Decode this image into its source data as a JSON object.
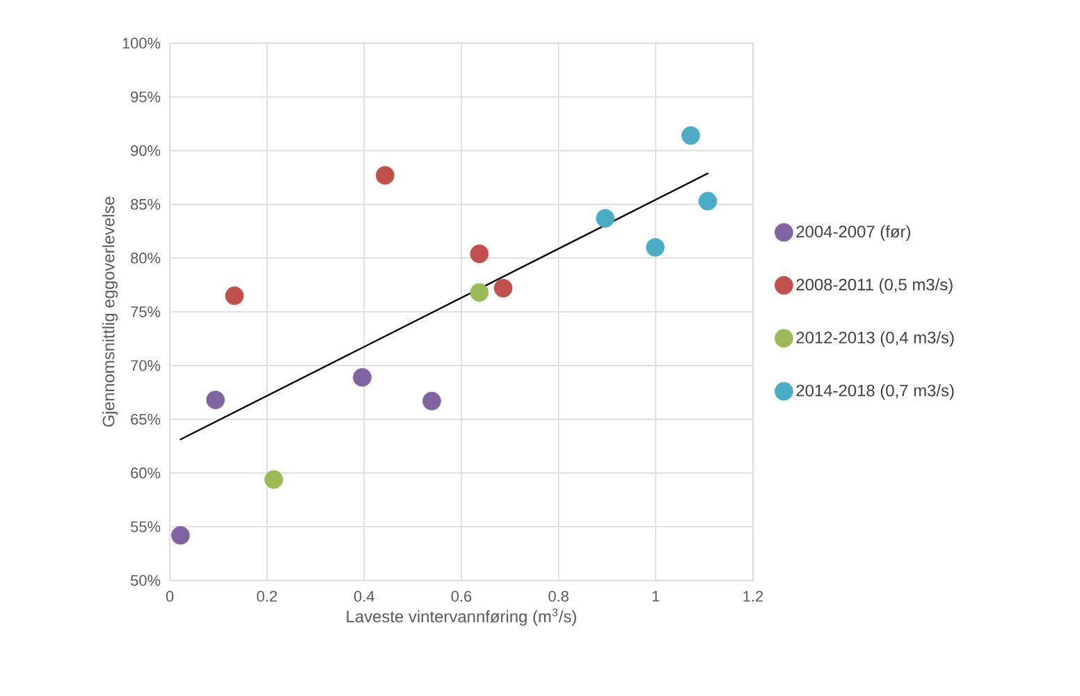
{
  "chart_data": {
    "type": "scatter",
    "xlabel": "Laveste vintervannføring (m$^{3}$/s)",
    "ylabel": "Gjennomsnittlig eggoverlevelse",
    "xlim": [
      0,
      1.2
    ],
    "xticks": [
      0,
      0.2,
      0.4,
      0.6,
      0.8,
      1,
      1.2
    ],
    "ylim": [
      50,
      100
    ],
    "yticks": [
      {
        "value": 50,
        "label": "50%"
      },
      {
        "value": 55,
        "label": "55%"
      },
      {
        "value": 60,
        "label": "60%"
      },
      {
        "value": 65,
        "label": "65%"
      },
      {
        "value": 70,
        "label": "70%"
      },
      {
        "value": 75,
        "label": "75%"
      },
      {
        "value": 80,
        "label": "80%"
      },
      {
        "value": 85,
        "label": "85%"
      },
      {
        "value": 90,
        "label": "90%"
      },
      {
        "value": 95,
        "label": "95%"
      },
      {
        "value": 100,
        "label": "100%"
      }
    ],
    "grid": true,
    "legend": "right",
    "series": [
      {
        "name": "2004-2007 (før)",
        "marker": "circle",
        "color": "#8064a2",
        "x": [
          0.022,
          0.094,
          0.396,
          0.539
        ],
        "values": [
          54.2,
          66.8,
          68.9,
          66.7
        ]
      },
      {
        "name": "2008-2011 (0,5 m3/s)",
        "marker": "circle",
        "color": "#c0504d",
        "x": [
          0.133,
          0.443,
          0.637,
          0.686
        ],
        "values": [
          76.5,
          87.7,
          80.4,
          77.2
        ]
      },
      {
        "name": "2012-2013 (0,4 m3/s)",
        "marker": "circle",
        "color": "#9bbb59",
        "x": [
          0.214,
          0.637
        ],
        "values": [
          59.4,
          76.8
        ]
      },
      {
        "name": "2014-2018 (0,7 m3/s)",
        "marker": "circle",
        "color": "#4bacc6",
        "x": [
          0.896,
          0.999,
          1.072,
          1.107
        ],
        "values": [
          83.7,
          81.0,
          91.4,
          85.3
        ]
      },
      {
        "type": "line",
        "marker": "none",
        "color": "#000000",
        "x": [
          0.021,
          1.108
        ],
        "values": [
          63.1,
          87.9
        ]
      }
    ]
  }
}
